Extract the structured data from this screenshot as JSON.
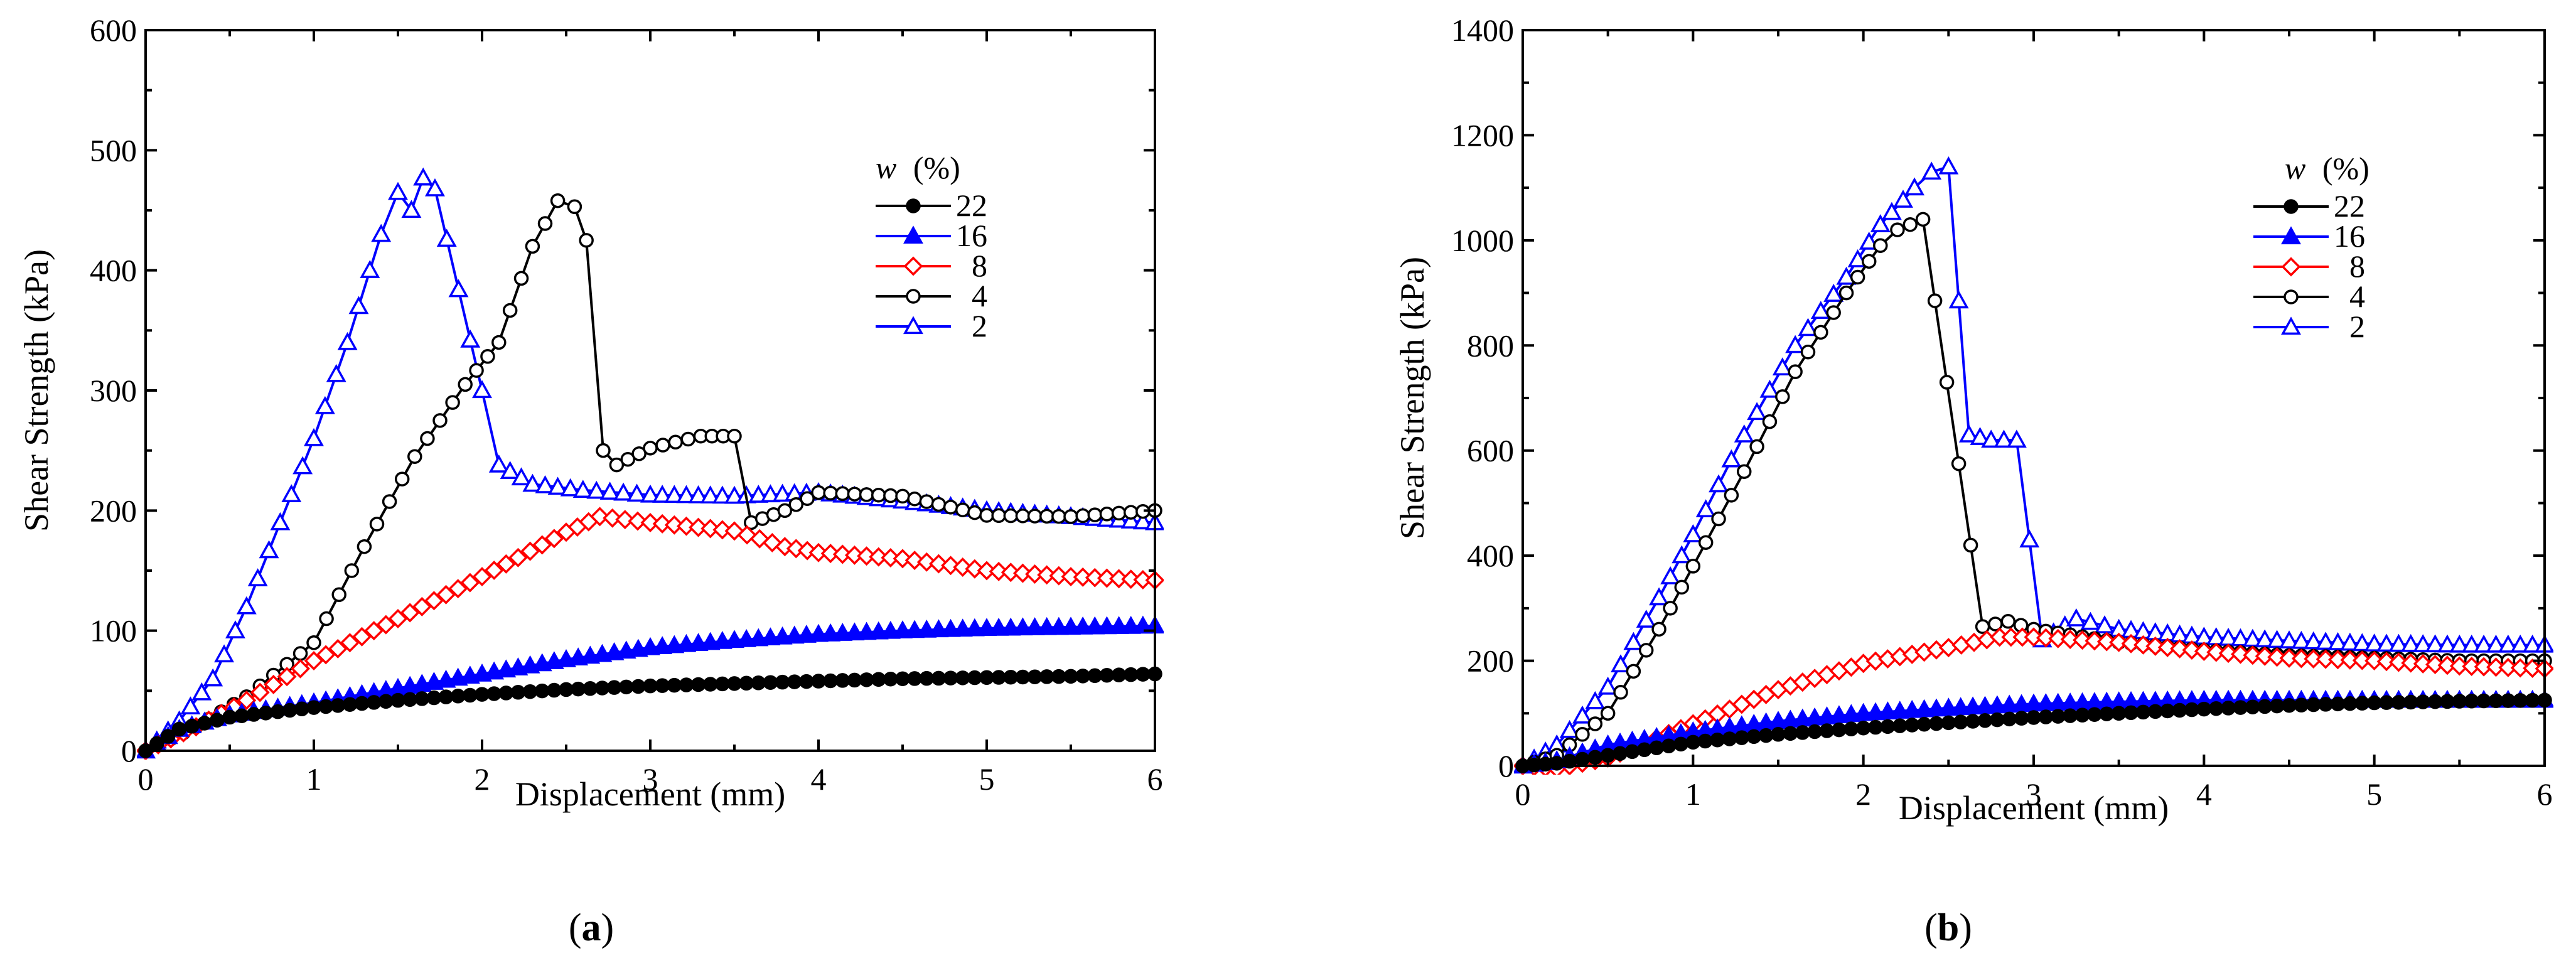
{
  "chart_data": [
    {
      "type": "line",
      "panel_label": "a",
      "title": "",
      "xlabel": "Displacement (mm)",
      "ylabel": "Shear Strength (kPa)",
      "xlim": [
        0,
        6
      ],
      "ylim": [
        0,
        600
      ],
      "xticks": [
        "0",
        "1",
        "2",
        "3",
        "4",
        "5",
        "6"
      ],
      "yticks": [
        "0",
        "100",
        "200",
        "300",
        "400",
        "500",
        "600"
      ],
      "legend_title": "w (%)",
      "legend_title_var": "w",
      "legend_title_unit": "(%)",
      "legend_position": "right",
      "series": [
        {
          "name": "22",
          "color": "#000000",
          "marker": "filled-circle",
          "x": [
            0,
            0.2,
            0.5,
            1,
            1.5,
            2,
            2.5,
            3,
            3.5,
            4,
            4.5,
            5,
            5.5,
            6
          ],
          "y": [
            0,
            18,
            28,
            36,
            42,
            47,
            51,
            54,
            56,
            58,
            60,
            61,
            62,
            64
          ]
        },
        {
          "name": "16",
          "color": "#0000ff",
          "marker": "filled-triangle",
          "x": [
            0,
            0.2,
            0.5,
            1,
            1.5,
            2,
            2.5,
            3,
            3.5,
            4,
            4.5,
            5,
            5.5,
            6
          ],
          "y": [
            0,
            18,
            30,
            40,
            52,
            64,
            76,
            86,
            92,
            97,
            100,
            102,
            103,
            104
          ]
        },
        {
          "name": "8",
          "color": "#ff0000",
          "marker": "open-diamond",
          "x": [
            0,
            0.3,
            0.6,
            1,
            1.5,
            2,
            2.5,
            2.7,
            3,
            3.5,
            3.8,
            4,
            4.5,
            5,
            5.5,
            6
          ],
          "y": [
            0,
            20,
            42,
            75,
            110,
            145,
            182,
            195,
            190,
            183,
            170,
            165,
            160,
            150,
            145,
            142
          ]
        },
        {
          "name": "4",
          "color": "#000000",
          "marker": "open-circle",
          "x": [
            0,
            0.3,
            0.6,
            1,
            1.3,
            1.6,
            1.9,
            2.1,
            2.3,
            2.45,
            2.55,
            2.62,
            2.72,
            2.8,
            3,
            3.3,
            3.5,
            3.6,
            3.8,
            4,
            4.5,
            5,
            5.5,
            6
          ],
          "y": [
            0,
            20,
            45,
            90,
            170,
            245,
            305,
            340,
            420,
            458,
            453,
            425,
            250,
            238,
            252,
            262,
            262,
            190,
            200,
            215,
            212,
            196,
            195,
            200
          ]
        },
        {
          "name": "2",
          "color": "#0000ff",
          "marker": "open-triangle",
          "x": [
            0,
            0.2,
            0.4,
            0.6,
            0.8,
            1,
            1.2,
            1.4,
            1.5,
            1.58,
            1.65,
            1.72,
            2,
            2.1,
            2.3,
            2.6,
            3,
            3.5,
            4,
            4.5,
            5,
            5.5,
            6
          ],
          "y": [
            0,
            25,
            60,
            120,
            190,
            260,
            340,
            430,
            465,
            450,
            477,
            468,
            300,
            238,
            222,
            217,
            213,
            212,
            215,
            208,
            200,
            195,
            190
          ]
        }
      ]
    },
    {
      "type": "line",
      "panel_label": "b",
      "title": "",
      "xlabel": "Displacement (mm)",
      "ylabel": "Shear Strength (kPa)",
      "xlim": [
        0,
        6
      ],
      "ylim": [
        0,
        1400
      ],
      "xticks": [
        "0",
        "1",
        "2",
        "3",
        "4",
        "5",
        "6"
      ],
      "yticks": [
        "0",
        "200",
        "400",
        "600",
        "800",
        "1000",
        "1200",
        "1400"
      ],
      "legend_title": "w (%)",
      "legend_title_var": "w",
      "legend_title_unit": "(%)",
      "legend_position": "right",
      "series": [
        {
          "name": "22",
          "color": "#000000",
          "marker": "filled-circle",
          "x": [
            0,
            0.2,
            0.5,
            1,
            1.5,
            2,
            2.5,
            3,
            3.5,
            4,
            4.5,
            5,
            5.5,
            6
          ],
          "y": [
            0,
            5,
            20,
            45,
            60,
            72,
            82,
            92,
            100,
            108,
            115,
            120,
            123,
            125
          ]
        },
        {
          "name": "16",
          "color": "#0000ff",
          "marker": "filled-triangle",
          "x": [
            0,
            0.2,
            0.5,
            1,
            1.5,
            2,
            2.5,
            3,
            3.5,
            4,
            4.5,
            5,
            5.5,
            6
          ],
          "y": [
            0,
            10,
            40,
            65,
            85,
            100,
            110,
            118,
            122,
            125,
            125,
            125,
            125,
            125
          ]
        },
        {
          "name": "8",
          "color": "#ff0000",
          "marker": "open-diamond",
          "x": [
            0,
            0.2,
            0.5,
            1,
            1.5,
            2,
            2.5,
            2.8,
            3,
            3.5,
            4,
            4.5,
            5,
            5.5,
            6
          ],
          "y": [
            0,
            -5,
            15,
            80,
            145,
            195,
            225,
            245,
            245,
            235,
            218,
            205,
            200,
            190,
            185
          ]
        },
        {
          "name": "4",
          "color": "#000000",
          "marker": "open-circle",
          "x": [
            0,
            0.2,
            0.5,
            0.8,
            1,
            1.3,
            1.6,
            1.9,
            2.1,
            2.2,
            2.35,
            2.7,
            2.85,
            3,
            3.5,
            4,
            4.5,
            5,
            5.5,
            6
          ],
          "y": [
            0,
            20,
            100,
            260,
            380,
            560,
            750,
            900,
            990,
            1020,
            1040,
            265,
            275,
            260,
            235,
            220,
            210,
            205,
            200,
            200
          ]
        },
        {
          "name": "2",
          "color": "#0000ff",
          "marker": "open-triangle",
          "x": [
            0,
            0.2,
            0.5,
            0.8,
            1,
            1.3,
            1.6,
            1.9,
            2.1,
            2.3,
            2.4,
            2.5,
            2.62,
            2.75,
            2.9,
            3.05,
            3.25,
            3.5,
            4,
            4.5,
            5,
            5.5,
            6
          ],
          "y": [
            0,
            40,
            150,
            320,
            440,
            630,
            800,
            930,
            1030,
            1100,
            1130,
            1140,
            630,
            620,
            620,
            240,
            280,
            260,
            245,
            238,
            232,
            230,
            230
          ]
        }
      ]
    }
  ]
}
